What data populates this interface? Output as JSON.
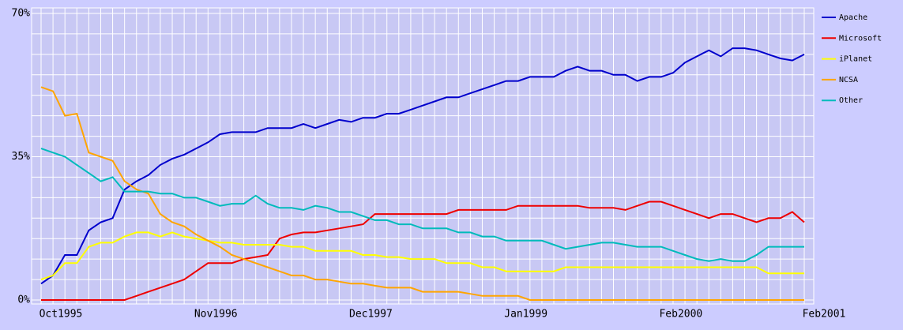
{
  "chart_data": {
    "type": "line",
    "categories": [
      "Oct1995",
      null,
      null,
      null,
      null,
      null,
      null,
      null,
      null,
      null,
      null,
      null,
      null,
      "Nov1996",
      null,
      null,
      null,
      null,
      null,
      null,
      null,
      null,
      null,
      null,
      null,
      null,
      "Dec1997",
      null,
      null,
      null,
      null,
      null,
      null,
      null,
      null,
      null,
      null,
      null,
      null,
      "Jan1999",
      null,
      null,
      null,
      null,
      null,
      null,
      null,
      null,
      null,
      null,
      null,
      null,
      "Feb2000",
      null,
      null,
      null,
      null,
      null,
      null,
      null,
      null,
      null,
      null,
      null,
      "Feb2001"
    ],
    "series": [
      {
        "name": "Apache",
        "color": "#0000cc",
        "values": [
          4,
          6,
          11,
          11,
          17,
          19,
          20,
          27,
          29,
          30.5,
          33,
          34.5,
          35.5,
          37,
          38.5,
          40.5,
          41,
          41,
          41,
          42,
          42,
          42,
          43,
          42,
          43,
          44,
          43.5,
          44.5,
          44.5,
          45.5,
          45.5,
          46.5,
          47.5,
          48.5,
          49.5,
          49.5,
          50.5,
          51.5,
          52.5,
          53.5,
          53.5,
          54.5,
          54.5,
          54.5,
          56,
          57,
          56,
          56,
          55,
          55,
          53.5,
          54.5,
          54.5,
          55.5,
          58,
          59.5,
          61,
          59.5,
          61.5,
          61.5,
          61,
          60,
          59,
          58.5,
          60
        ]
      },
      {
        "name": "Microsoft",
        "color": "#ee0000",
        "values": [
          0,
          0,
          0,
          0,
          0,
          0,
          0,
          0,
          1,
          2,
          3,
          4,
          5,
          7,
          9,
          9,
          9,
          10,
          10.5,
          11,
          15,
          16,
          16.5,
          16.5,
          17,
          17.5,
          18,
          18.5,
          21,
          21,
          21,
          21,
          21,
          21,
          21,
          22,
          22,
          22,
          22,
          22,
          23,
          23,
          23,
          23,
          23,
          23,
          22.5,
          22.5,
          22.5,
          22,
          23,
          24,
          24,
          23,
          22,
          21,
          20,
          21,
          21,
          20,
          19,
          20,
          20,
          21.5,
          19
        ]
      },
      {
        "name": "iPlanet",
        "color": "#ffff00",
        "values": [
          5,
          6,
          9,
          9,
          13,
          14,
          14,
          15.5,
          16.5,
          16.5,
          15.5,
          16.5,
          15.5,
          15,
          14.5,
          14,
          14,
          13.5,
          13.5,
          13.5,
          13.5,
          13,
          13,
          12,
          12,
          12,
          12,
          11,
          11,
          10.5,
          10.5,
          10,
          10,
          10,
          9,
          9,
          9,
          8,
          8,
          7,
          7,
          7,
          7,
          7,
          8,
          8,
          8,
          8,
          8,
          8,
          8,
          8,
          8,
          8,
          8,
          8,
          8,
          8,
          8,
          8,
          8,
          6.5,
          6.5,
          6.5,
          6.5
        ]
      },
      {
        "name": "NCSA",
        "color": "#ffa500",
        "values": [
          52,
          51,
          45,
          45.5,
          36,
          35,
          34,
          29,
          27,
          26,
          21,
          19,
          18,
          16,
          14.5,
          13,
          11,
          10,
          9,
          8,
          7,
          6,
          6,
          5,
          5,
          4.5,
          4,
          4,
          3.5,
          3,
          3,
          3,
          2,
          2,
          2,
          2,
          1.5,
          1,
          1,
          1,
          1,
          0,
          0,
          0,
          0,
          0,
          0,
          0,
          0,
          0,
          0,
          0,
          0,
          0,
          0,
          0,
          0,
          0,
          0,
          0,
          0,
          0,
          0,
          0,
          0
        ]
      },
      {
        "name": "Other",
        "color": "#00bbbb",
        "values": [
          37,
          36,
          35,
          33,
          31,
          29,
          30,
          26.5,
          26.5,
          26.5,
          26,
          26,
          25,
          25,
          24,
          23,
          23.5,
          23.5,
          25.5,
          23.5,
          22.5,
          22.5,
          22,
          23,
          22.5,
          21.5,
          21.5,
          20.5,
          19.5,
          19.5,
          18.5,
          18.5,
          17.5,
          17.5,
          17.5,
          16.5,
          16.5,
          15.5,
          15.5,
          14.5,
          14.5,
          14.5,
          14.5,
          13.5,
          12.5,
          13,
          13.5,
          14,
          14,
          13.5,
          13,
          13,
          13,
          12,
          11,
          10,
          9.5,
          10,
          9.5,
          9.5,
          11,
          13,
          13,
          13,
          13
        ]
      }
    ],
    "ylim": [
      0,
      70
    ],
    "yticks": [
      {
        "value": 0,
        "label": "0%"
      },
      {
        "value": 35,
        "label": "35%"
      },
      {
        "value": 70,
        "label": "70%"
      }
    ],
    "ygrid": [
      0,
      5,
      10,
      15,
      20,
      25,
      30,
      35,
      40,
      45,
      50,
      55,
      60,
      65,
      70
    ],
    "grid": true,
    "legend": "right"
  }
}
